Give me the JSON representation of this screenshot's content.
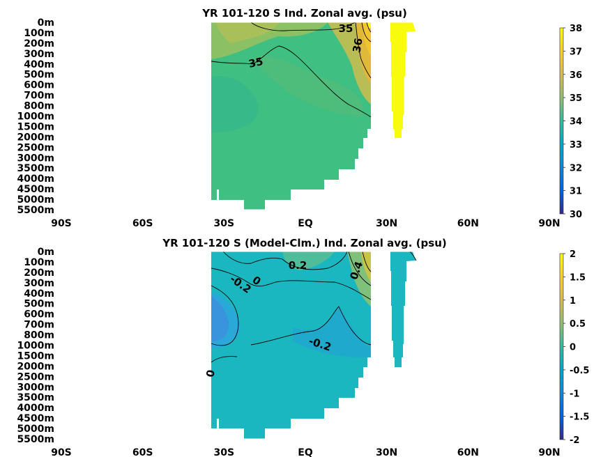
{
  "chart_data": [
    {
      "type": "heatmap",
      "title": "YR 101-120 S Ind. Zonal avg. (psu)",
      "x_ticks": [
        "90S",
        "60S",
        "30S",
        "EQ",
        "30N",
        "60N",
        "90N"
      ],
      "y_ticks": [
        "0m",
        "100m",
        "200m",
        "300m",
        "400m",
        "500m",
        "600m",
        "700m",
        "800m",
        "1000m",
        "1500m",
        "2000m",
        "2500m",
        "3000m",
        "3500m",
        "4000m",
        "4500m",
        "5000m",
        "5500m"
      ],
      "colorbar": {
        "range": [
          30,
          38
        ],
        "ticks": [
          "30",
          "31",
          "32",
          "33",
          "34",
          "35",
          "36",
          "37",
          "38"
        ]
      },
      "contour_labels": [
        "35",
        "35",
        "36"
      ],
      "base_color": "#3fbf82",
      "colors": {
        "salty": "#e0b83a",
        "very_salty": "#f9fb0e"
      }
    },
    {
      "type": "heatmap",
      "title": "YR 101-120 S (Model-Clm.) Ind. Zonal avg. (psu)",
      "x_ticks": [
        "90S",
        "60S",
        "30S",
        "EQ",
        "30N",
        "60N",
        "90N"
      ],
      "y_ticks": [
        "0m",
        "100m",
        "200m",
        "300m",
        "400m",
        "500m",
        "600m",
        "700m",
        "800m",
        "1000m",
        "1500m",
        "2000m",
        "2500m",
        "3000m",
        "3500m",
        "4000m",
        "4500m",
        "5000m",
        "5500m"
      ],
      "colorbar": {
        "range": [
          -2,
          2
        ],
        "ticks": [
          "-2",
          "-1.5",
          "-1",
          "-0.5",
          "0",
          "0.5",
          "1",
          "1.5",
          "2"
        ]
      },
      "contour_labels": [
        "0.2",
        "-0.2",
        "0",
        "-0.2",
        "0",
        "0.4"
      ],
      "base_color": "#1bb7c1",
      "colors": {
        "negative": "#2aa8d8",
        "positive": "#a6c65a"
      }
    }
  ]
}
